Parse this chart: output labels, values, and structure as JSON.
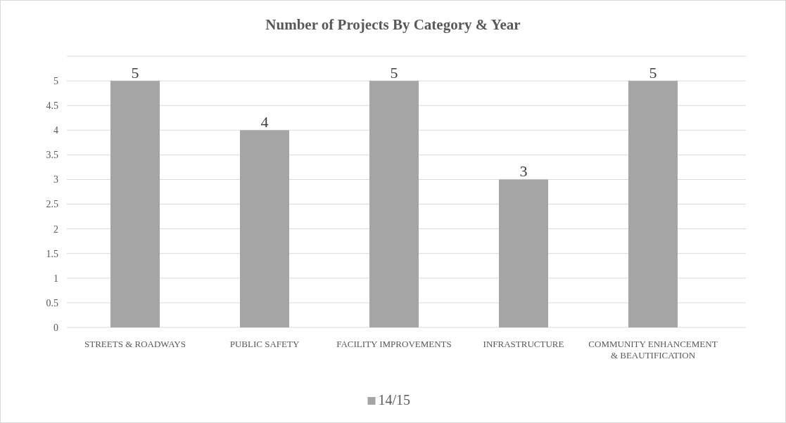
{
  "chart_data": {
    "type": "bar",
    "title": "Number of Projects By Category & Year",
    "categories": [
      "STREETS & ROADWAYS",
      "PUBLIC SAFETY",
      "FACILITY IMPROVEMENTS",
      "INFRASTRUCTURE",
      "COMMUNITY ENHANCEMENT & BEAUTIFICATION"
    ],
    "series": [
      {
        "name": "14/15",
        "color": "#a5a5a5",
        "values": [
          5,
          4,
          5,
          3,
          5
        ]
      }
    ],
    "ylim": [
      0,
      5.5
    ],
    "yticks": [
      0,
      0.5,
      1,
      1.5,
      2,
      2.5,
      3,
      3.5,
      4,
      4.5,
      5,
      {
        "value": 5.5,
        "label": null
      }
    ],
    "grid": "y",
    "data_labels": true,
    "legend": "bottom"
  }
}
